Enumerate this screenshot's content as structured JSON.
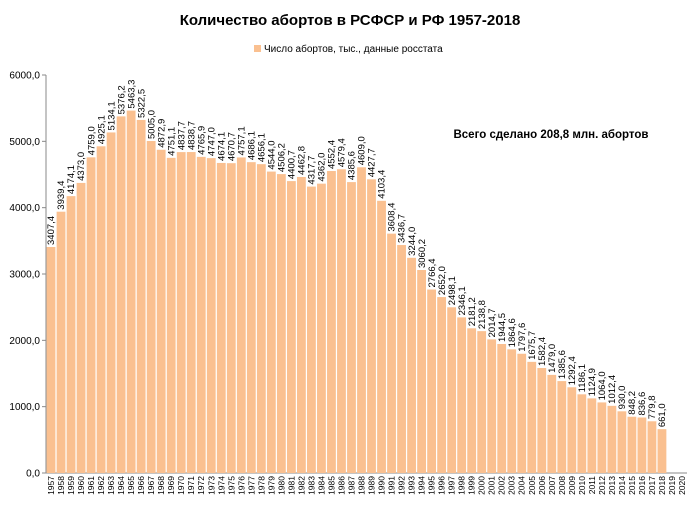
{
  "chart_data": {
    "type": "bar",
    "title": "Количество абортов  в РСФСР  и РФ 1957-2018",
    "legend": {
      "label": "Число абортов, тыс., данные росстата",
      "position": "top"
    },
    "annotation": "Всего сделано 208,8 млн.  абортов",
    "bar_color": "#fac090",
    "ylim": [
      0,
      6000
    ],
    "yticks": [
      "0,0",
      "1000,0",
      "2000,0",
      "3000,0",
      "4000,0",
      "5000,0",
      "6000,0"
    ],
    "categories": [
      "1957",
      "1958",
      "1959",
      "1960",
      "1961",
      "1962",
      "1963",
      "1964",
      "1965",
      "1966",
      "1967",
      "1968",
      "1969",
      "1970",
      "1971",
      "1972",
      "1973",
      "1974",
      "1975",
      "1976",
      "1977",
      "1978",
      "1979",
      "1980",
      "1981",
      "1982",
      "1983",
      "1984",
      "1985",
      "1986",
      "1987",
      "1988",
      "1989",
      "1990",
      "1991",
      "1992",
      "1993",
      "1994",
      "1995",
      "1996",
      "1997",
      "1998",
      "1999",
      "2000",
      "2001",
      "2002",
      "2003",
      "2004",
      "2005",
      "2006",
      "2007",
      "2008",
      "2009",
      "2010",
      "2011",
      "2012",
      "2013",
      "2014",
      "2015",
      "2016",
      "2017",
      "2018",
      "2019",
      "2020"
    ],
    "values": [
      3407.4,
      3939.4,
      4174.1,
      4373.0,
      4759.0,
      4925.1,
      5134.1,
      5376.2,
      5463.3,
      5322.5,
      5005.0,
      4872.9,
      4751.1,
      4837.7,
      4838.7,
      4765.9,
      4747.0,
      4674.1,
      4670.7,
      4757.1,
      4686.1,
      4656.1,
      4544.0,
      4506.2,
      4400.7,
      4462.8,
      4317.7,
      4362.0,
      4552.4,
      4579.4,
      4385.6,
      4609.0,
      4427.7,
      4103.4,
      3608.4,
      3436.7,
      3244.0,
      3060.2,
      2766.4,
      2652.0,
      2498.1,
      2346.1,
      2181.2,
      2138.8,
      2014.7,
      1944.5,
      1864.6,
      1797.6,
      1675.7,
      1582.4,
      1479.0,
      1385.6,
      1292.4,
      1186.1,
      1124.9,
      1064.0,
      1012.4,
      930.0,
      848.2,
      836.6,
      779.8,
      661.0,
      null,
      null
    ],
    "data_labels": [
      "3407,4",
      "3939,4",
      "4174,1",
      "4373,0",
      "4759,0",
      "4925,1",
      "5134,1",
      "5376,2",
      "5463,3",
      "5322,5",
      "5005,0",
      "4872,9",
      "4751,1",
      "4837,7",
      "4838,7",
      "4765,9",
      "4747,0",
      "4674,1",
      "4670,7",
      "4757,1",
      "4686,1",
      "4656,1",
      "4544,0",
      "4506,2",
      "4400,7",
      "4462,8",
      "4317,7",
      "4362,0",
      "4552,4",
      "4579,4",
      "4385,6",
      "4609,0",
      "4427,7",
      "4103,4",
      "3608,4",
      "3436,7",
      "3244,0",
      "3060,2",
      "2766,4",
      "2652,0",
      "2498,1",
      "2346,1",
      "2181,2",
      "2138,8",
      "2014,7",
      "1944,5",
      "1864,6",
      "1797,6",
      "1675,7",
      "1582,4",
      "1479,0",
      "1385,6",
      "1292,4",
      "1186,1",
      "1124,9",
      "1064,0",
      "1012,4",
      "930,0",
      "848,2",
      "836,6",
      "779,8",
      "661,0",
      "",
      ""
    ]
  }
}
